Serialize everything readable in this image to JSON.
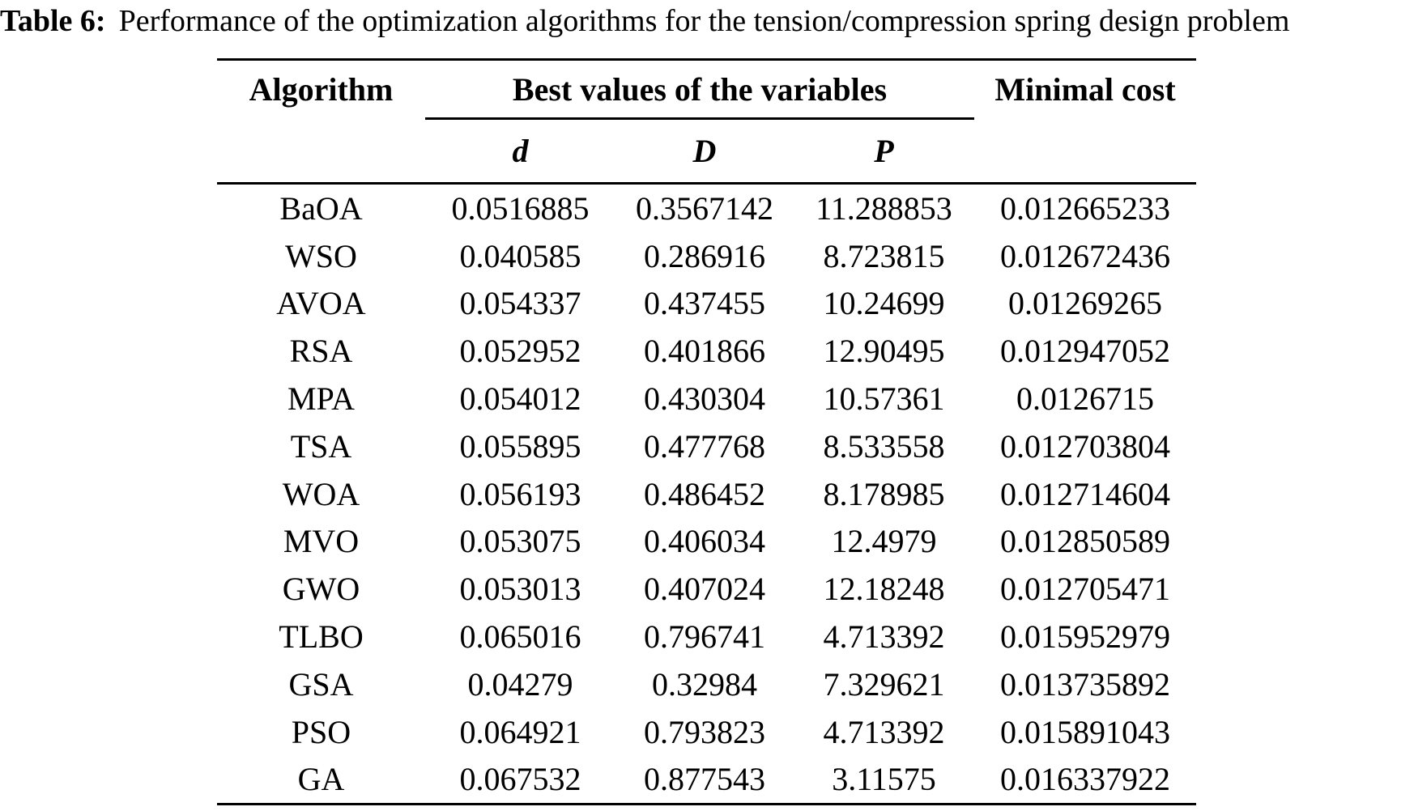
{
  "title": {
    "label": "Table 6:",
    "text": "Performance of the optimization algorithms for the tension/compression spring design problem"
  },
  "table": {
    "headers": {
      "algorithm": "Algorithm",
      "group": "Best values of the variables",
      "cost": "Minimal cost",
      "sub": [
        "d",
        "D",
        "P"
      ]
    },
    "rows": [
      {
        "algorithm": "BaOA",
        "d": "0.0516885",
        "D": "0.3567142",
        "P": "11.288853",
        "cost": "0.012665233"
      },
      {
        "algorithm": "WSO",
        "d": "0.040585",
        "D": "0.286916",
        "P": "8.723815",
        "cost": "0.012672436"
      },
      {
        "algorithm": "AVOA",
        "d": "0.054337",
        "D": "0.437455",
        "P": "10.24699",
        "cost": "0.01269265"
      },
      {
        "algorithm": "RSA",
        "d": "0.052952",
        "D": "0.401866",
        "P": "12.90495",
        "cost": "0.012947052"
      },
      {
        "algorithm": "MPA",
        "d": "0.054012",
        "D": "0.430304",
        "P": "10.57361",
        "cost": "0.0126715"
      },
      {
        "algorithm": "TSA",
        "d": "0.055895",
        "D": "0.477768",
        "P": "8.533558",
        "cost": "0.012703804"
      },
      {
        "algorithm": "WOA",
        "d": "0.056193",
        "D": "0.486452",
        "P": "8.178985",
        "cost": "0.012714604"
      },
      {
        "algorithm": "MVO",
        "d": "0.053075",
        "D": "0.406034",
        "P": "12.4979",
        "cost": "0.012850589"
      },
      {
        "algorithm": "GWO",
        "d": "0.053013",
        "D": "0.407024",
        "P": "12.18248",
        "cost": "0.012705471"
      },
      {
        "algorithm": "TLBO",
        "d": "0.065016",
        "D": "0.796741",
        "P": "4.713392",
        "cost": "0.015952979"
      },
      {
        "algorithm": "GSA",
        "d": "0.04279",
        "D": "0.32984",
        "P": "7.329621",
        "cost": "0.013735892"
      },
      {
        "algorithm": "PSO",
        "d": "0.064921",
        "D": "0.793823",
        "P": "4.713392",
        "cost": "0.015891043"
      },
      {
        "algorithm": "GA",
        "d": "0.067532",
        "D": "0.877543",
        "P": "3.11575",
        "cost": "0.016337922"
      }
    ]
  }
}
